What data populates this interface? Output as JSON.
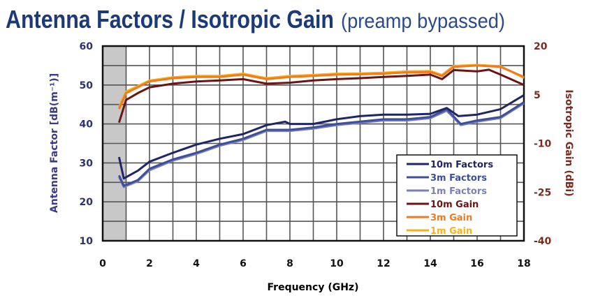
{
  "chart_data": {
    "type": "line",
    "title": "Antenna Factors / Isotropic Gain",
    "subtitle": "(preamp bypassed)",
    "xlabel": "Frequency (GHz)",
    "ylabel_left": "Antenna Factor [dB(m⁻¹)]",
    "ylabel_right": "Isotropic Gain (dBi)",
    "xlim": [
      0,
      18
    ],
    "ylim_left": [
      10,
      60
    ],
    "ylim_right": [
      -40,
      20
    ],
    "x_ticks": [
      "0",
      "2",
      "4",
      "6",
      "8",
      "10",
      "12",
      "14",
      "16",
      "18"
    ],
    "y_ticks_left": [
      "60",
      "50",
      "40",
      "30",
      "20",
      "10"
    ],
    "y_ticks_right": [
      "20",
      "5",
      "-10",
      "-25",
      "-40"
    ],
    "grid": true,
    "shaded_band_x": [
      0,
      1
    ],
    "legend_position": "bottom-right",
    "colors": {
      "title": "#1d3a78",
      "left_axis": "#2d3270",
      "right_axis": "#7a2b1f",
      "shade": "#c8c8c8"
    },
    "series": [
      {
        "name": "10m Factors",
        "axis": "left",
        "color": "#1f2566",
        "x": [
          0.7,
          0.9,
          1.5,
          2,
          3,
          4,
          5,
          6,
          7,
          7.8,
          8,
          9,
          10,
          11,
          12,
          13,
          14,
          14.7,
          15.2,
          16,
          17,
          18
        ],
        "y": [
          31.5,
          26,
          28,
          30.3,
          32.6,
          34.7,
          36.2,
          37.4,
          39.7,
          40.6,
          40,
          40,
          41.2,
          42,
          42.4,
          42.4,
          42.6,
          44.1,
          42,
          42.4,
          43.8,
          47.4
        ]
      },
      {
        "name": "3m Factors",
        "axis": "left",
        "color": "#3d4f9a",
        "x": [
          0.7,
          0.9,
          1.5,
          2,
          3,
          4,
          5,
          6,
          7,
          8,
          9,
          10,
          11,
          12,
          13,
          14,
          14.7,
          15.3,
          16,
          17,
          18
        ],
        "y": [
          26.8,
          24.1,
          25.6,
          28.5,
          30.9,
          32.6,
          34.7,
          36.2,
          38.5,
          38.5,
          39.1,
          40,
          40.6,
          41.2,
          41.2,
          41.8,
          43.8,
          40,
          40.9,
          41.8,
          45.6
        ]
      },
      {
        "name": "1m Factors",
        "axis": "left",
        "color": "#7b7fb8",
        "x": [
          0.7,
          0.9,
          1.5,
          2,
          3,
          4,
          5,
          6,
          7,
          8,
          9,
          10,
          11,
          12,
          13,
          14,
          14.7,
          15.3,
          16,
          17,
          18
        ],
        "y": [
          26.4,
          23.8,
          25.3,
          28.1,
          30.6,
          32.3,
          34.4,
          35.9,
          38.2,
          38.2,
          38.8,
          39.7,
          40.3,
          40.9,
          40.9,
          41.5,
          43.4,
          39.7,
          40.6,
          41.5,
          45.3
        ]
      },
      {
        "name": "10m Gain",
        "axis": "right",
        "color": "#6b1414",
        "x": [
          0.7,
          1,
          1.5,
          2,
          3,
          4,
          5,
          6,
          7,
          8,
          9,
          10,
          11,
          12,
          13,
          14,
          14.5,
          15,
          16,
          16.5,
          17,
          18
        ],
        "y": [
          -3.6,
          3.4,
          5.5,
          7.3,
          8.4,
          9.1,
          9.4,
          9.8,
          8.4,
          8.7,
          9.4,
          9.8,
          10.1,
          10.5,
          10.8,
          11.2,
          9.8,
          12.6,
          12.2,
          12.7,
          11.2,
          8
        ]
      },
      {
        "name": "3m Gain",
        "axis": "right",
        "color": "#f07a1e",
        "x": [
          0.7,
          1,
          2,
          3,
          4,
          5,
          6,
          7,
          8,
          9,
          10,
          11,
          12,
          13,
          14,
          14.5,
          15,
          16,
          17,
          18
        ],
        "y": [
          0.6,
          5.5,
          9.1,
          10.1,
          10.5,
          10.5,
          11.2,
          9.8,
          10.5,
          10.8,
          11.2,
          11.3,
          11.5,
          11.9,
          12,
          10.8,
          13.6,
          14,
          13.6,
          10.5
        ]
      },
      {
        "name": "1m Gain",
        "axis": "right",
        "color": "#f9b21b",
        "x": [
          0.7,
          1,
          2,
          3,
          4,
          5,
          6,
          7,
          8,
          9,
          10,
          11,
          12,
          13,
          14,
          14.5,
          15,
          16,
          17,
          18
        ],
        "y": [
          1.2,
          6,
          9.4,
          10.4,
          10.8,
          10.8,
          11.5,
          10.1,
          10.8,
          11.1,
          11.5,
          11.6,
          11.8,
          12.2,
          12.3,
          11.1,
          13.9,
          14.2,
          13.8,
          10.2
        ]
      }
    ]
  }
}
